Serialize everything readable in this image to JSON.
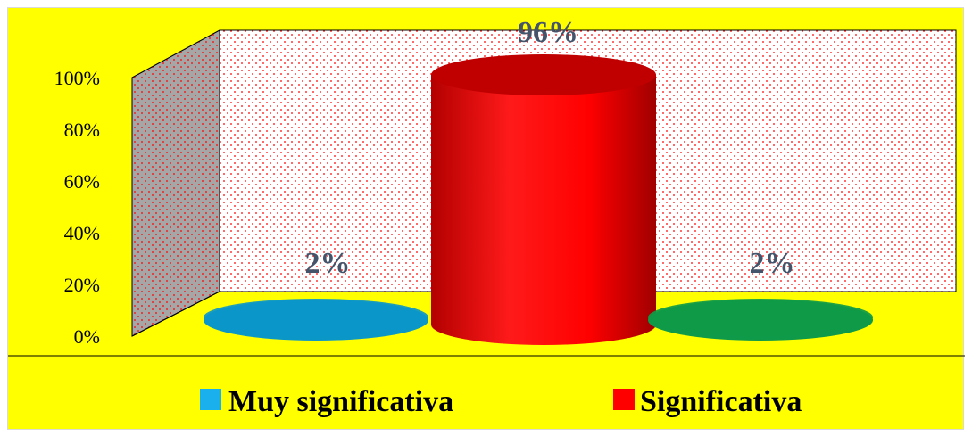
{
  "chart_data": {
    "type": "bar",
    "categories": [
      "Muy significativa",
      "Significativa",
      ""
    ],
    "values": [
      2,
      96,
      2
    ],
    "value_labels": [
      "2%",
      "96%",
      "2%"
    ],
    "colors": [
      "#0b96c8",
      "#ff0000",
      "#0e9a48"
    ],
    "yticks": [
      "0%",
      "20%",
      "40%",
      "60%",
      "80%",
      "100%"
    ],
    "ylim": [
      0,
      100
    ],
    "legend": [
      {
        "label": "Muy significativa",
        "color": "#1ab0ee"
      },
      {
        "label": "Significativa",
        "color": "#ff0000"
      }
    ],
    "legend_position": "bottom",
    "background": "#ffff00",
    "wall_color": "#ffffff",
    "side_wall_color": "#a6a6a6",
    "pattern_color": "#ff0000"
  }
}
